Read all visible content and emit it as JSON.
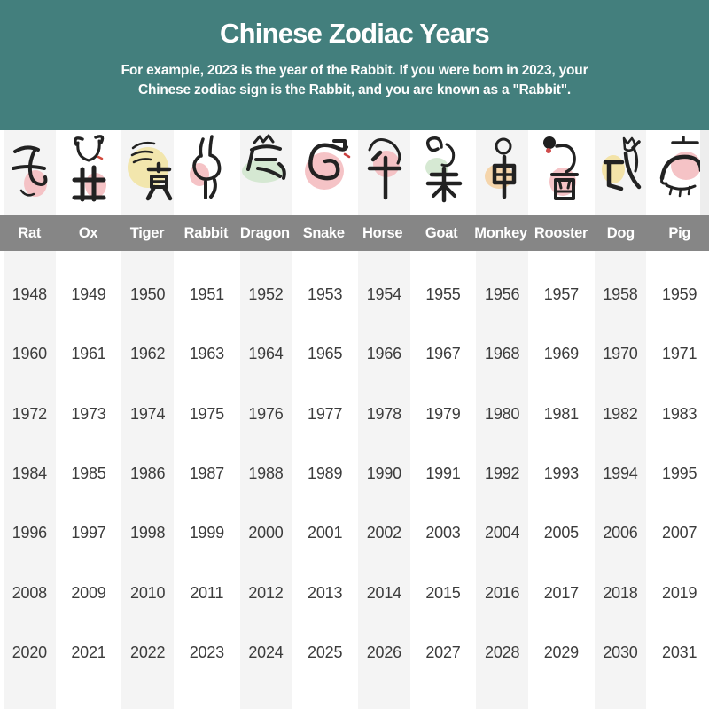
{
  "header": {
    "title": "Chinese Zodiac Years",
    "subtitle_lines": [
      "For example, 2023 is the year of the Rabbit. If you were born in 2023, your",
      "Chinese zodiac sign is the Rabbit, and you are known as a \"Rabbit\"."
    ]
  },
  "colors": {
    "header_bg": "#437f7d",
    "name_bar_bg": "#868686",
    "column_stripe": "#f4f4f4",
    "year_text": "#3c3c3c",
    "header_text": "#ffffff",
    "icon_ink": "#222222"
  },
  "table": {
    "columns": [
      {
        "name": "Rat",
        "branch_char": "子",
        "blob_color": "#f3b8bc"
      },
      {
        "name": "Ox",
        "branch_char": "丑",
        "blob_color": "#f3b8bc"
      },
      {
        "name": "Tiger",
        "branch_char": "寅",
        "blob_color": "#f1e3a0"
      },
      {
        "name": "Rabbit",
        "branch_char": "卯",
        "blob_color": "#f3b8bc"
      },
      {
        "name": "Dragon",
        "branch_char": "辰",
        "blob_color": "#cfe5cb"
      },
      {
        "name": "Snake",
        "branch_char": "巳",
        "blob_color": "#f3b8bc"
      },
      {
        "name": "Horse",
        "branch_char": "午",
        "blob_color": "#f3b8bc"
      },
      {
        "name": "Goat",
        "branch_char": "未",
        "blob_color": "#cfe5cb"
      },
      {
        "name": "Monkey",
        "branch_char": "申",
        "blob_color": "#f5cf9e"
      },
      {
        "name": "Rooster",
        "branch_char": "酉",
        "blob_color": "#f3b8bc"
      },
      {
        "name": "Dog",
        "branch_char": "戌",
        "blob_color": "#f2df9a"
      },
      {
        "name": "Pig",
        "branch_char": "亥",
        "blob_color": "#f3b8bc"
      }
    ]
  },
  "chart_data": {
    "type": "table",
    "title": "Chinese Zodiac Years",
    "subtitle": "For example, 2023 is the year of the Rabbit. If you were born in 2023, your Chinese zodiac sign is the Rabbit, and you are known as a \"Rabbit\".",
    "columns": [
      "Rat",
      "Ox",
      "Tiger",
      "Rabbit",
      "Dragon",
      "Snake",
      "Horse",
      "Goat",
      "Monkey",
      "Rooster",
      "Dog",
      "Pig"
    ],
    "rows": [
      [
        1948,
        1949,
        1950,
        1951,
        1952,
        1953,
        1954,
        1955,
        1956,
        1957,
        1958,
        1959
      ],
      [
        1960,
        1961,
        1962,
        1963,
        1964,
        1965,
        1966,
        1967,
        1968,
        1969,
        1970,
        1971
      ],
      [
        1972,
        1973,
        1974,
        1975,
        1976,
        1977,
        1978,
        1979,
        1980,
        1981,
        1982,
        1983
      ],
      [
        1984,
        1985,
        1986,
        1987,
        1988,
        1989,
        1990,
        1991,
        1992,
        1993,
        1994,
        1995
      ],
      [
        1996,
        1997,
        1998,
        1999,
        2000,
        2001,
        2002,
        2003,
        2004,
        2005,
        2006,
        2007
      ],
      [
        2008,
        2009,
        2010,
        2011,
        2012,
        2013,
        2014,
        2015,
        2016,
        2017,
        2018,
        2019
      ],
      [
        2020,
        2021,
        2022,
        2023,
        2024,
        2025,
        2026,
        2027,
        2028,
        2029,
        2030,
        2031
      ]
    ]
  }
}
